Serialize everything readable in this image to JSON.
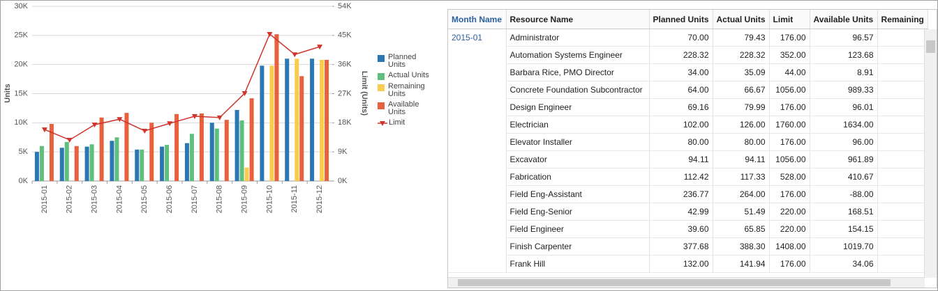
{
  "chart_data": {
    "type": "bar",
    "y_label": "Units",
    "y2_label": "Limit (Units)",
    "categories": [
      "2015-01",
      "2015-02",
      "2015-03",
      "2015-04",
      "2015-05",
      "2015-06",
      "2015-07",
      "2015-08",
      "2015-09",
      "2015-10",
      "2015-11",
      "2015-12"
    ],
    "series": [
      {
        "name": "Planned Units",
        "color": "#2a77b4",
        "values": [
          5000,
          5700,
          5900,
          6900,
          5400,
          5900,
          6500,
          10000,
          12200,
          19800,
          21000,
          21000
        ]
      },
      {
        "name": "Actual Units",
        "color": "#5fbf7f",
        "values": [
          6000,
          6700,
          6300,
          7500,
          5400,
          6200,
          8100,
          9000,
          10400,
          null,
          null,
          null
        ]
      },
      {
        "name": "Remaining Units",
        "color": "#f8cd4f",
        "values": [
          null,
          null,
          null,
          null,
          null,
          null,
          null,
          null,
          2300,
          19800,
          21000,
          20800
        ]
      },
      {
        "name": "Available Units",
        "color": "#e8603c",
        "values": [
          9800,
          6000,
          10900,
          11700,
          10000,
          11500,
          11600,
          10500,
          14200,
          25200,
          18000,
          20800
        ]
      },
      {
        "name": "Limit",
        "color": "#d0342c",
        "type": "line",
        "axis": "y2",
        "values": [
          15900,
          12700,
          17400,
          19100,
          15500,
          17800,
          20000,
          19600,
          27100,
          45400,
          39100,
          41500
        ]
      }
    ],
    "ylim": [
      0,
      30000
    ],
    "yticks": [
      {
        "value": 0,
        "label": "0K"
      },
      {
        "value": 5000,
        "label": "5K"
      },
      {
        "value": 10000,
        "label": "10K"
      },
      {
        "value": 15000,
        "label": "15K"
      },
      {
        "value": 20000,
        "label": "20K"
      },
      {
        "value": 25000,
        "label": "25K"
      },
      {
        "value": 30000,
        "label": "30K"
      }
    ],
    "y2lim": [
      0,
      54000
    ],
    "y2ticks": [
      {
        "value": 0,
        "label": "0K"
      },
      {
        "value": 9000,
        "label": "9K"
      },
      {
        "value": 18000,
        "label": "18K"
      },
      {
        "value": 27000,
        "label": "27K"
      },
      {
        "value": 36000,
        "label": "36K"
      },
      {
        "value": 45000,
        "label": "45K"
      },
      {
        "value": 54000,
        "label": "54K"
      }
    ],
    "grid": true,
    "legend": "right"
  },
  "table": {
    "columns": [
      "Month Name",
      "Resource Name",
      "Planned Units",
      "Actual Units",
      "Limit",
      "Available Units",
      "Remaining"
    ],
    "month": "2015-01",
    "rows": [
      [
        "Administrator",
        "70.00",
        "79.43",
        "176.00",
        "96.57"
      ],
      [
        "Automation Systems Engineer",
        "228.32",
        "228.32",
        "352.00",
        "123.68"
      ],
      [
        "Barbara Rice, PMO Director",
        "34.00",
        "35.09",
        "44.00",
        "8.91"
      ],
      [
        "Concrete Foundation Subcontractor",
        "64.00",
        "66.67",
        "1056.00",
        "989.33"
      ],
      [
        "Design Engineer",
        "69.16",
        "79.99",
        "176.00",
        "96.01"
      ],
      [
        "Electrician",
        "102.00",
        "126.00",
        "1760.00",
        "1634.00"
      ],
      [
        "Elevator Installer",
        "80.00",
        "80.00",
        "176.00",
        "96.00"
      ],
      [
        "Excavator",
        "94.11",
        "94.11",
        "1056.00",
        "961.89"
      ],
      [
        "Fabrication",
        "112.42",
        "117.33",
        "528.00",
        "410.67"
      ],
      [
        "Field Eng-Assistant",
        "236.77",
        "264.00",
        "176.00",
        "-88.00"
      ],
      [
        "Field Eng-Senior",
        "42.99",
        "51.49",
        "220.00",
        "168.51"
      ],
      [
        "Field Engineer",
        "39.60",
        "65.85",
        "220.00",
        "154.15"
      ],
      [
        "Finish Carpenter",
        "377.68",
        "388.30",
        "1408.00",
        "1019.70"
      ],
      [
        "Frank Hill",
        "132.00",
        "141.94",
        "176.00",
        "34.06"
      ]
    ]
  }
}
